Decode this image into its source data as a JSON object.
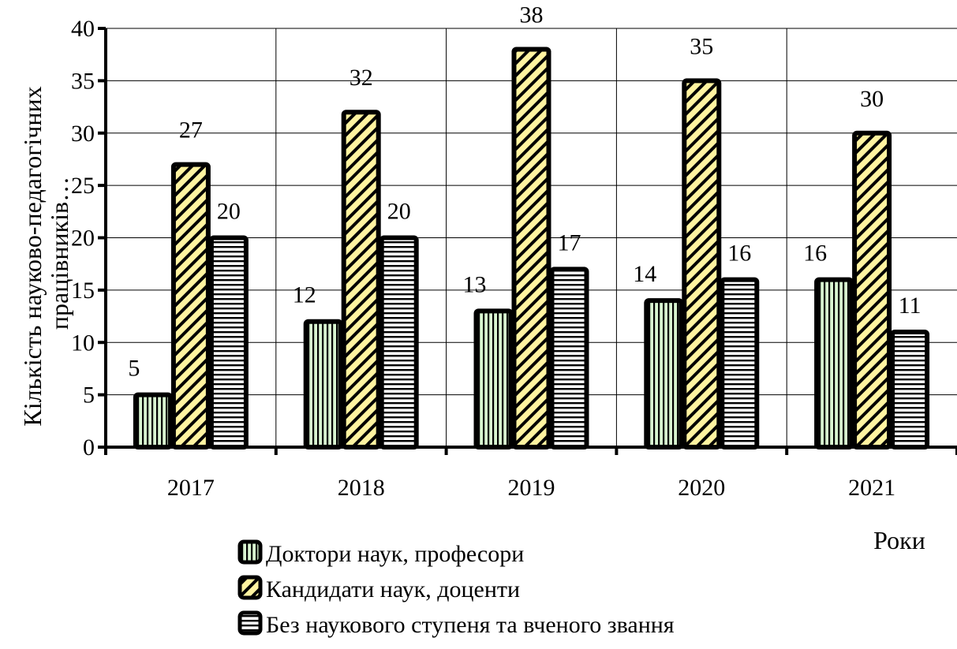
{
  "chart_data": {
    "type": "bar",
    "categories": [
      "2017",
      "2018",
      "2019",
      "2020",
      "2021"
    ],
    "series": [
      {
        "name": "Доктори наук,  професори",
        "values": [
          5,
          12,
          13,
          14,
          16
        ],
        "color": "#d8f5d0",
        "pattern": "vertical"
      },
      {
        "name": "Кандидати наук, доценти",
        "values": [
          27,
          32,
          38,
          35,
          30
        ],
        "color": "#fff3a0",
        "pattern": "diagonal"
      },
      {
        "name": "Без наукового ступеня та вченого звання",
        "values": [
          20,
          20,
          17,
          16,
          11
        ],
        "color": "#ffffff",
        "pattern": "horizontal"
      }
    ],
    "ylabel": "Кількість науково-педагогічних працівників…",
    "xlabel": "Роки",
    "ylim": [
      0,
      40
    ],
    "yticks": [
      0,
      5,
      10,
      15,
      20,
      25,
      30,
      35,
      40
    ],
    "grid": true,
    "legend": "bottom"
  }
}
